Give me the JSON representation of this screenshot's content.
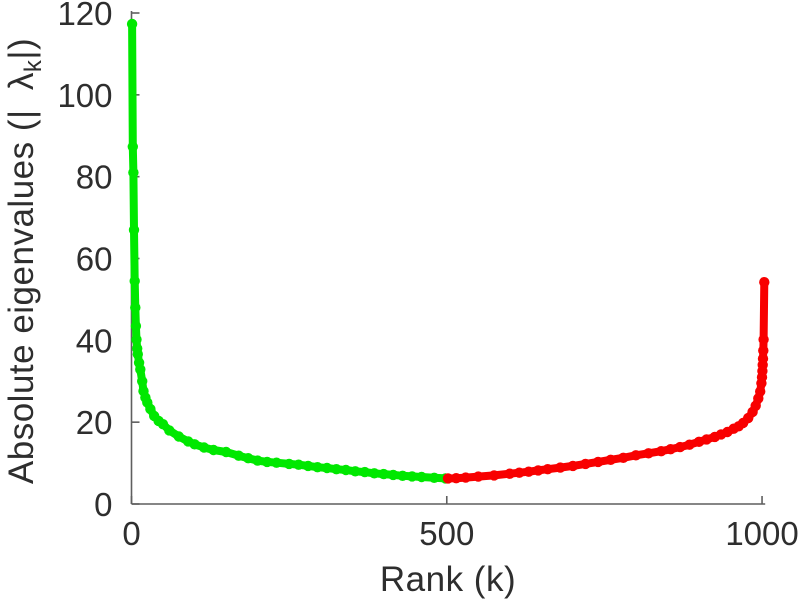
{
  "chart_data": {
    "type": "line",
    "title": "",
    "xlabel": "Rank (k)",
    "ylabel": "Absolute eigenvalues (|λ_k|)",
    "ylabel_rich": {
      "prefix": "Absolute eigenvalues (|",
      "lambda": "λ",
      "subscript": "k",
      "suffix": "|)"
    },
    "xlim": [
      0,
      1005
    ],
    "ylim": [
      0,
      120
    ],
    "xticks": [
      0,
      500,
      1000
    ],
    "yticks": [
      0,
      20,
      40,
      60,
      80,
      100,
      120
    ],
    "grid": false,
    "legend": null,
    "box": false,
    "marker": "filled-circle",
    "line_style": "solid-with-dot-markers",
    "axis_color": "#5f5f5f",
    "text_color": "#2e2e2e",
    "background_color": "#ffffff",
    "series": [
      {
        "name": "eigenvalues-first-half-green",
        "color": "#00e800",
        "points": [
          [
            1,
            117.3
          ],
          [
            2,
            87.3
          ],
          [
            3,
            81.0
          ],
          [
            4,
            67.0
          ],
          [
            5,
            54.5
          ],
          [
            6,
            48.0
          ],
          [
            7,
            43.5
          ],
          [
            8,
            40.2
          ],
          [
            9,
            38.0
          ],
          [
            10,
            36.6
          ],
          [
            12,
            34.5
          ],
          [
            14,
            32.9
          ],
          [
            17,
            30.0
          ],
          [
            19,
            27.6
          ],
          [
            22,
            26.0
          ],
          [
            25,
            24.8
          ],
          [
            30,
            23.2
          ],
          [
            36,
            21.5
          ],
          [
            43,
            20.3
          ],
          [
            50,
            19.5
          ],
          [
            60,
            18.0
          ],
          [
            75,
            16.5
          ],
          [
            90,
            15.3
          ],
          [
            100,
            14.6
          ],
          [
            115,
            13.8
          ],
          [
            130,
            13.2
          ],
          [
            150,
            12.7
          ],
          [
            170,
            11.8
          ],
          [
            185,
            11.2
          ],
          [
            200,
            10.6
          ],
          [
            215,
            10.3
          ],
          [
            230,
            10.1
          ],
          [
            250,
            9.8
          ],
          [
            265,
            9.6
          ],
          [
            280,
            9.3
          ],
          [
            295,
            9.0
          ],
          [
            310,
            8.8
          ],
          [
            325,
            8.5
          ],
          [
            340,
            8.3
          ],
          [
            355,
            8.0
          ],
          [
            370,
            7.8
          ],
          [
            385,
            7.5
          ],
          [
            400,
            7.3
          ],
          [
            415,
            7.1
          ],
          [
            430,
            6.9
          ],
          [
            445,
            6.75
          ],
          [
            460,
            6.6
          ],
          [
            480,
            6.4
          ],
          [
            498,
            6.25
          ]
        ]
      },
      {
        "name": "eigenvalues-second-half-red",
        "color": "#f80000",
        "points": [
          [
            502,
            6.25
          ],
          [
            515,
            6.3
          ],
          [
            530,
            6.45
          ],
          [
            550,
            6.7
          ],
          [
            575,
            7.0
          ],
          [
            600,
            7.4
          ],
          [
            615,
            7.65
          ],
          [
            630,
            7.9
          ],
          [
            645,
            8.2
          ],
          [
            660,
            8.5
          ],
          [
            680,
            8.9
          ],
          [
            700,
            9.3
          ],
          [
            720,
            9.8
          ],
          [
            740,
            10.3
          ],
          [
            760,
            10.8
          ],
          [
            780,
            11.3
          ],
          [
            800,
            11.9
          ],
          [
            820,
            12.4
          ],
          [
            840,
            12.9
          ],
          [
            855,
            13.4
          ],
          [
            870,
            13.9
          ],
          [
            885,
            14.5
          ],
          [
            900,
            15.2
          ],
          [
            912,
            15.8
          ],
          [
            925,
            16.4
          ],
          [
            935,
            17.0
          ],
          [
            945,
            17.6
          ],
          [
            955,
            18.4
          ],
          [
            963,
            19.0
          ],
          [
            970,
            19.8
          ],
          [
            978,
            21.0
          ],
          [
            985,
            22.5
          ],
          [
            990,
            24.0
          ],
          [
            994,
            25.8
          ],
          [
            997,
            27.5
          ],
          [
            999,
            29.5
          ],
          [
            1000,
            31.0
          ],
          [
            1000.5,
            32.5
          ],
          [
            1001,
            34.0
          ],
          [
            1001.5,
            35.5
          ],
          [
            1002,
            37.5
          ],
          [
            1002.5,
            40.2
          ],
          [
            1003.5,
            54.2
          ]
        ]
      }
    ]
  }
}
